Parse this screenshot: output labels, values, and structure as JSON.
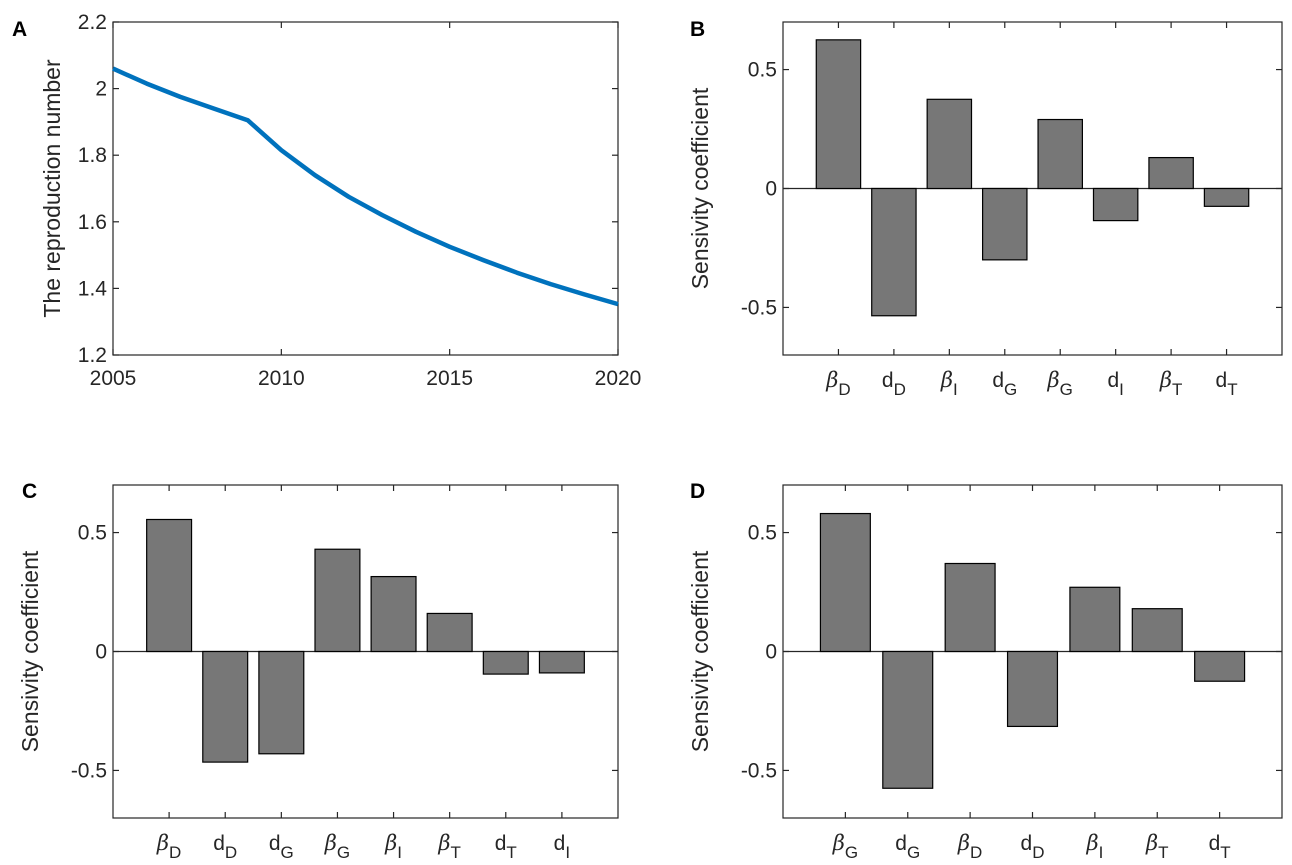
{
  "colors": {
    "line": "#0072BD",
    "bar_fill": "#777777",
    "bar_edge": "#000000",
    "axes": "#262626"
  },
  "chart_data": [
    {
      "panel": "A",
      "type": "line",
      "title": "",
      "xlabel": "",
      "ylabel": "The reproduction number",
      "xlim": [
        2005,
        2020
      ],
      "ylim": [
        1.2,
        2.2
      ],
      "xticks": [
        "2005",
        "2010",
        "2015",
        "2020"
      ],
      "yticks": [
        "1.2",
        "1.4",
        "1.6",
        "1.8",
        "2",
        "2.2"
      ],
      "grid": false,
      "series": [
        {
          "x": [
            2005,
            2006,
            2007,
            2008,
            2009,
            2010,
            2011,
            2012,
            2013,
            2014,
            2015,
            2016,
            2017,
            2018,
            2019,
            2020
          ],
          "values": [
            2.06,
            2.015,
            1.975,
            1.94,
            1.905,
            1.815,
            1.74,
            1.675,
            1.62,
            1.57,
            1.525,
            1.485,
            1.447,
            1.413,
            1.382,
            1.353
          ]
        }
      ]
    },
    {
      "panel": "B",
      "type": "bar",
      "title": "",
      "xlabel": "",
      "ylabel": "Sensivity coefficient",
      "ylim": [
        -0.7,
        0.7
      ],
      "yticks": [
        "-0.5",
        "0",
        "0.5"
      ],
      "grid": false,
      "categories": [
        {
          "main": "β",
          "sub": "D"
        },
        {
          "main": "d",
          "sub": "D"
        },
        {
          "main": "β",
          "sub": "I"
        },
        {
          "main": "d",
          "sub": "G"
        },
        {
          "main": "β",
          "sub": "G"
        },
        {
          "main": "d",
          "sub": "I"
        },
        {
          "main": "β",
          "sub": "T"
        },
        {
          "main": "d",
          "sub": "T"
        }
      ],
      "values": [
        0.625,
        -0.535,
        0.375,
        -0.3,
        0.29,
        -0.135,
        0.13,
        -0.075
      ]
    },
    {
      "panel": "C",
      "type": "bar",
      "title": "",
      "xlabel": "",
      "ylabel": "Sensivity coefficient",
      "ylim": [
        -0.7,
        0.7
      ],
      "yticks": [
        "-0.5",
        "0",
        "0.5"
      ],
      "grid": false,
      "categories": [
        {
          "main": "β",
          "sub": "D"
        },
        {
          "main": "d",
          "sub": "D"
        },
        {
          "main": "d",
          "sub": "G"
        },
        {
          "main": "β",
          "sub": "G"
        },
        {
          "main": "β",
          "sub": "I"
        },
        {
          "main": "β",
          "sub": "T"
        },
        {
          "main": "d",
          "sub": "T"
        },
        {
          "main": "d",
          "sub": "I"
        }
      ],
      "values": [
        0.555,
        -0.465,
        -0.43,
        0.43,
        0.315,
        0.16,
        -0.095,
        -0.09
      ]
    },
    {
      "panel": "D",
      "type": "bar",
      "title": "",
      "xlabel": "",
      "ylabel": "Sensivity coefficient",
      "ylim": [
        -0.7,
        0.7
      ],
      "yticks": [
        "-0.5",
        "0",
        "0.5"
      ],
      "grid": false,
      "categories": [
        {
          "main": "β",
          "sub": "G"
        },
        {
          "main": "d",
          "sub": "G"
        },
        {
          "main": "β",
          "sub": "D"
        },
        {
          "main": "d",
          "sub": "D"
        },
        {
          "main": "β",
          "sub": "I"
        },
        {
          "main": "β",
          "sub": "T"
        },
        {
          "main": "d",
          "sub": "T"
        }
      ],
      "values": [
        0.58,
        -0.575,
        0.37,
        -0.315,
        0.27,
        0.18,
        -0.125
      ]
    }
  ]
}
